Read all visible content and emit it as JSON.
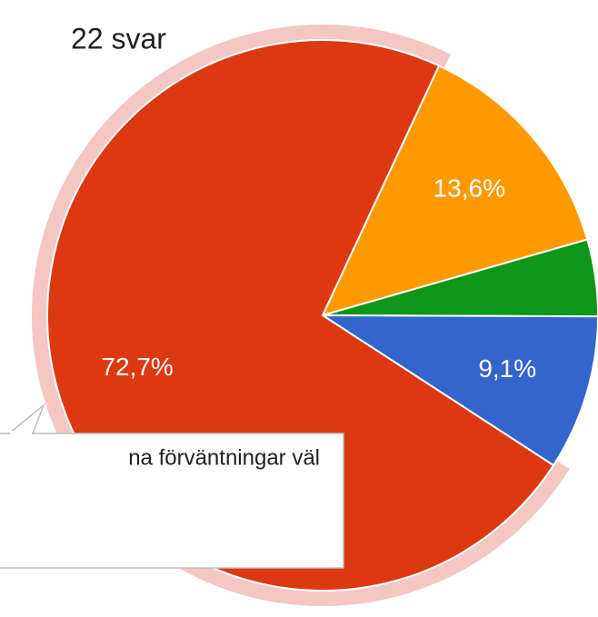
{
  "chart_data": {
    "type": "pie",
    "title": "22 svar",
    "series": [
      {
        "values": [
          13.6,
          4.5,
          9.1,
          72.7
        ],
        "value_labels": [
          "13,6%",
          null,
          "9,1%",
          "72,7%"
        ],
        "colors": [
          "#ff9900",
          "#109618",
          "#3366cc",
          "#dc3912"
        ]
      }
    ],
    "highlight_color": "#f4c7c3",
    "tooltip": "na förväntningar väl"
  }
}
